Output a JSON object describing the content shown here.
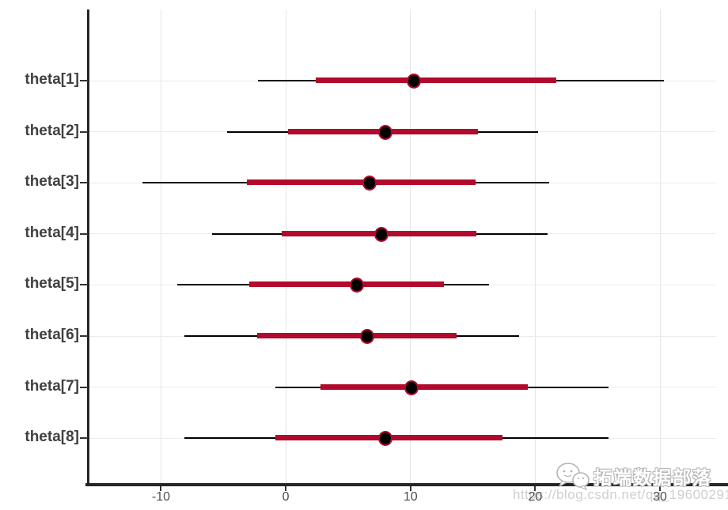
{
  "chart_data": {
    "type": "interval",
    "title": "",
    "xlabel": "",
    "ylabel": "",
    "categories": [
      "theta[1]",
      "theta[2]",
      "theta[3]",
      "theta[4]",
      "theta[5]",
      "theta[6]",
      "theta[7]",
      "theta[8]"
    ],
    "series": [
      {
        "name": "theta[1]",
        "outer": [
          -2.2,
          30.3
        ],
        "inner": [
          2.4,
          21.7
        ],
        "point": 10.3
      },
      {
        "name": "theta[2]",
        "outer": [
          -4.7,
          20.2
        ],
        "inner": [
          0.2,
          15.4
        ],
        "point": 8.0
      },
      {
        "name": "theta[3]",
        "outer": [
          -11.5,
          21.1
        ],
        "inner": [
          -3.1,
          15.2
        ],
        "point": 6.7
      },
      {
        "name": "theta[4]",
        "outer": [
          -5.9,
          21.0
        ],
        "inner": [
          -0.3,
          15.3
        ],
        "point": 7.7
      },
      {
        "name": "theta[5]",
        "outer": [
          -8.7,
          16.3
        ],
        "inner": [
          -2.9,
          12.7
        ],
        "point": 5.7
      },
      {
        "name": "theta[6]",
        "outer": [
          -8.1,
          18.7
        ],
        "inner": [
          -2.3,
          13.7
        ],
        "point": 6.5
      },
      {
        "name": "theta[7]",
        "outer": [
          -0.8,
          25.9
        ],
        "inner": [
          2.8,
          19.4
        ],
        "point": 10.1
      },
      {
        "name": "theta[8]",
        "outer": [
          -8.1,
          25.9
        ],
        "inner": [
          -0.8,
          17.4
        ],
        "point": 8.0
      }
    ],
    "x_ticks": [
      -10,
      0,
      10,
      20,
      30
    ],
    "xlim": [
      -15.8,
      34.5
    ],
    "legend": "none",
    "grid": "light-gray vertical at ticks and horizontal at rows"
  },
  "colors": {
    "inner_bar": "#b20a2c",
    "outer_line": "#000000",
    "point_fill": "#000000",
    "point_outline": "#b20a2c",
    "axis_line": "#262626",
    "grid_line": "#e6e6e6",
    "row_label": "#404040",
    "tick_label": "#4d4d4d",
    "watermark_gray": "#cfcfcf"
  },
  "watermark": {
    "brand": "拓端数据部落",
    "url": "https://blog.csdn.net/qq_19600291",
    "icon": "wechat-bubbles-icon"
  }
}
